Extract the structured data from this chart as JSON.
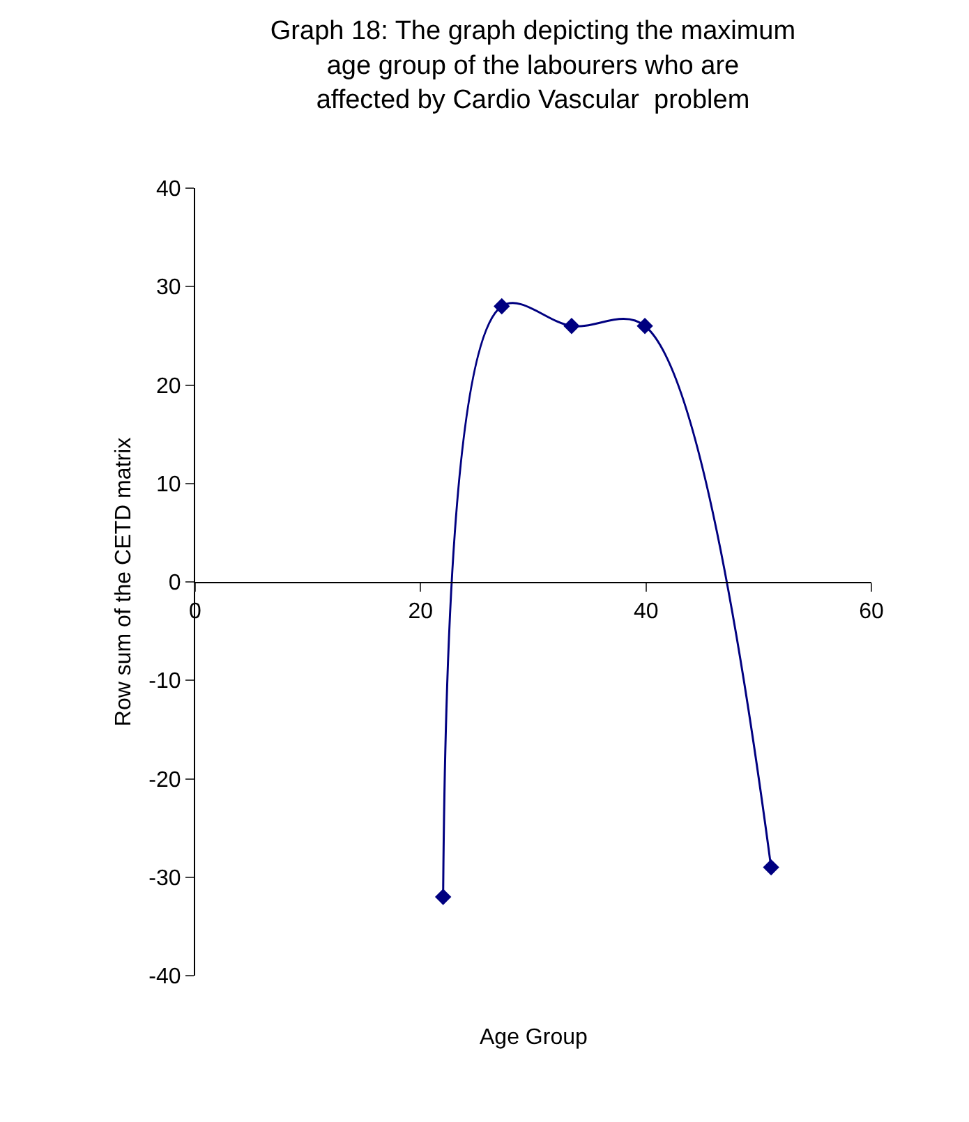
{
  "chart_data": {
    "type": "line",
    "title": "Graph 18: The graph depicting the maximum age group of the labourers who are affected by Cardio Vascular  problem",
    "xlabel": "Age Group",
    "ylabel": "Row sum of the CETD matrix",
    "x": [
      22,
      27.2,
      33.4,
      39.9,
      51.1
    ],
    "series": [
      {
        "color": "#000080",
        "values": [
          -32,
          28,
          26,
          26,
          -29
        ]
      }
    ],
    "xlim": [
      0,
      60
    ],
    "xticks": [
      0,
      20,
      40,
      60
    ],
    "ylim": [
      -40,
      40
    ],
    "yticks": [
      -40,
      -30,
      -20,
      -10,
      0,
      10,
      20,
      30,
      40
    ],
    "marker": "diamond",
    "line_style": "solid"
  }
}
